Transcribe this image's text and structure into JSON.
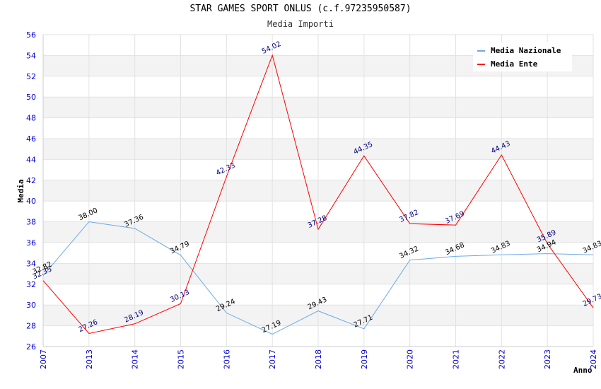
{
  "title": "STAR GAMES SPORT ONLUS (c.f.97235950587)",
  "subtitle": "Media Importi",
  "chart_data": {
    "type": "line",
    "categories": [
      "2007",
      "2013",
      "2014",
      "2015",
      "2016",
      "2017",
      "2018",
      "2019",
      "2020",
      "2021",
      "2022",
      "2023",
      "2024"
    ],
    "xlabel": "Anno",
    "ylabel": "Media",
    "ylim": [
      26,
      56
    ],
    "yticks": [
      26,
      28,
      30,
      32,
      34,
      36,
      38,
      40,
      42,
      44,
      46,
      48,
      50,
      52,
      54,
      56
    ],
    "grid": true,
    "legend_position": "top-right",
    "series": [
      {
        "name": "Media Nazionale",
        "color": "#6aaae6",
        "label_color": "#000000",
        "values": [
          32.82,
          38.0,
          37.36,
          34.79,
          29.24,
          27.19,
          29.43,
          27.71,
          34.32,
          34.68,
          34.83,
          34.94,
          34.83
        ]
      },
      {
        "name": "Media Ente",
        "color": "#ff0000",
        "label_color": "#000080",
        "values": [
          32.35,
          27.26,
          28.19,
          30.13,
          42.33,
          54.02,
          37.28,
          44.35,
          37.82,
          37.69,
          44.43,
          35.89,
          29.73
        ]
      }
    ]
  }
}
